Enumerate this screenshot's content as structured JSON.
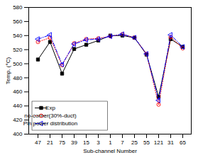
{
  "chart_data": {
    "type": "line",
    "xlabel": "Sub-channel Number",
    "ylabel": "Temp. (°C)",
    "categories": [
      "47",
      "21",
      "75",
      "39",
      "15",
      "3",
      "1",
      "7",
      "25",
      "55",
      "121",
      "31",
      "65"
    ],
    "series": [
      {
        "name": "Exp",
        "color": "#000000",
        "marker": "square-filled",
        "line_style": "solid",
        "values": [
          506,
          531,
          486,
          521,
          527,
          533,
          540,
          540,
          537,
          513,
          453,
          535,
          524
        ]
      },
      {
        "name": "no-corner(30%-duct)",
        "color": "#ff0000",
        "marker": "circle-open",
        "line_style": "dotted",
        "values": [
          531,
          537,
          498,
          529,
          535,
          536,
          539,
          542,
          537,
          514,
          442,
          538,
          522
        ]
      },
      {
        "name": "Pin power distribution",
        "color": "#0000ff",
        "marker": "triangle-left-open",
        "line_style": "dashdot",
        "values": [
          535,
          541,
          499,
          528,
          534,
          535,
          539,
          542,
          537,
          514,
          448,
          541,
          524
        ]
      }
    ],
    "ylim": [
      400,
      580
    ],
    "yticks": [
      400,
      420,
      440,
      460,
      480,
      500,
      520,
      540,
      560,
      580
    ],
    "legend": "lower left"
  }
}
